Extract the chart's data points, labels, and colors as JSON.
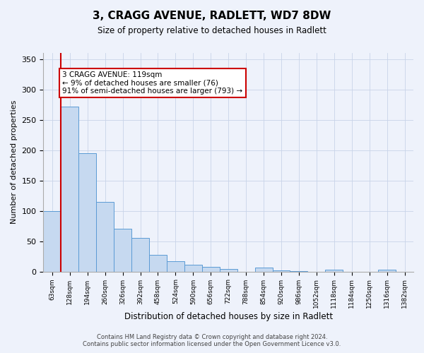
{
  "title": "3, CRAGG AVENUE, RADLETT, WD7 8DW",
  "subtitle": "Size of property relative to detached houses in Radlett",
  "xlabel": "Distribution of detached houses by size in Radlett",
  "ylabel": "Number of detached properties",
  "categories": [
    "63sqm",
    "128sqm",
    "194sqm",
    "260sqm",
    "326sqm",
    "392sqm",
    "458sqm",
    "524sqm",
    "590sqm",
    "656sqm",
    "722sqm",
    "788sqm",
    "854sqm",
    "920sqm",
    "986sqm",
    "1052sqm",
    "1118sqm",
    "1184sqm",
    "1250sqm",
    "1316sqm",
    "1382sqm"
  ],
  "values": [
    100,
    272,
    195,
    115,
    70,
    55,
    28,
    17,
    11,
    8,
    4,
    0,
    7,
    2,
    1,
    0,
    3,
    0,
    0,
    3,
    0
  ],
  "bar_color": "#c6d9f0",
  "bar_edge_color": "#5b9bd5",
  "ylim": [
    0,
    360
  ],
  "yticks": [
    0,
    50,
    100,
    150,
    200,
    250,
    300,
    350
  ],
  "red_line_x": 0.5,
  "annotation_text": "3 CRAGG AVENUE: 119sqm\n← 9% of detached houses are smaller (76)\n91% of semi-detached houses are larger (793) →",
  "annotation_box_color": "#ffffff",
  "annotation_box_edge": "#cc0000",
  "red_line_color": "#cc0000",
  "footer_line1": "Contains HM Land Registry data © Crown copyright and database right 2024.",
  "footer_line2": "Contains public sector information licensed under the Open Government Licence v3.0.",
  "background_color": "#eef2fb",
  "plot_background": "#eef2fb"
}
